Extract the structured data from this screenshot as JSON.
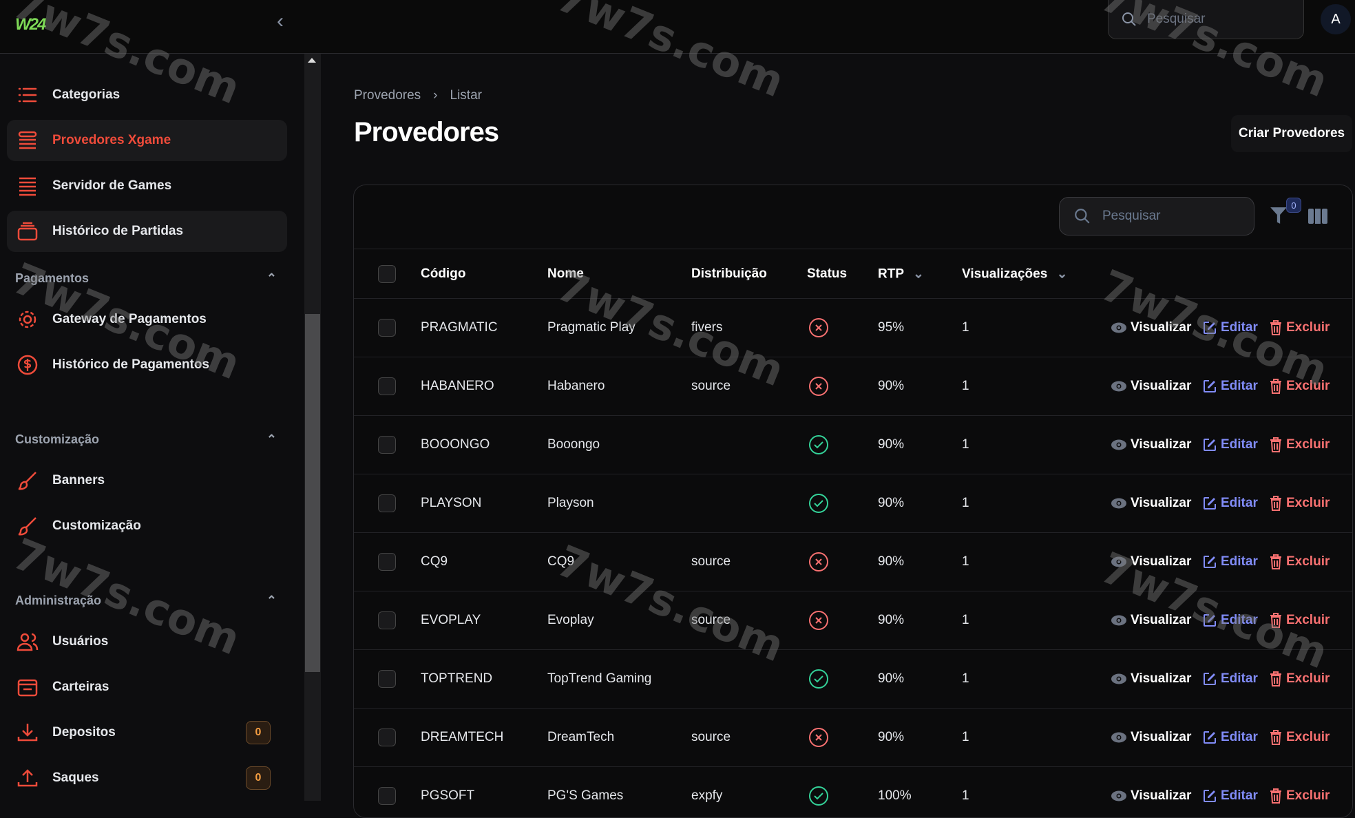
{
  "app": {
    "logo": "W24",
    "watermark": "7w7s.com"
  },
  "topbar": {
    "search_placeholder": "Pesquisar",
    "avatar": "A"
  },
  "sidebar": {
    "items_top": [
      {
        "label": "Categorias",
        "icon": "list-icon"
      },
      {
        "label": "Provedores Xgame",
        "icon": "stack-icon",
        "active": true
      },
      {
        "label": "Servidor de Games",
        "icon": "lines-icon"
      },
      {
        "label": "Histórico de Partidas",
        "icon": "archive-icon"
      }
    ],
    "sections": [
      {
        "title": "Pagamentos",
        "items": [
          {
            "label": "Gateway de Pagamentos",
            "icon": "gear-icon"
          },
          {
            "label": "Histórico de Pagamentos",
            "icon": "dollar-icon"
          }
        ]
      },
      {
        "title": "Customização",
        "items": [
          {
            "label": "Banners",
            "icon": "brush-icon"
          },
          {
            "label": "Customização",
            "icon": "brush-icon"
          }
        ]
      },
      {
        "title": "Administração",
        "items": [
          {
            "label": "Usuários",
            "icon": "users-icon"
          },
          {
            "label": "Carteiras",
            "icon": "wallet-icon"
          },
          {
            "label": "Depositos",
            "icon": "download-icon",
            "badge": "0"
          },
          {
            "label": "Saques",
            "icon": "upload-icon",
            "badge": "0"
          }
        ]
      }
    ]
  },
  "breadcrumb": [
    "Provedores",
    "Listar"
  ],
  "page_title": "Provedores",
  "create_button": "Criar Provedores",
  "table": {
    "search_placeholder": "Pesquisar",
    "filter_count": "0",
    "columns": [
      "Código",
      "Nome",
      "Distribuição",
      "Status",
      "RTP",
      "Visualizações"
    ],
    "actions": {
      "view": "Visualizar",
      "edit": "Editar",
      "delete": "Excluir"
    },
    "rows": [
      {
        "code": "PRAGMATIC",
        "name": "Pragmatic Play",
        "dist": "fivers",
        "status": "inactive",
        "rtp": "95%",
        "views": "1"
      },
      {
        "code": "HABANERO",
        "name": "Habanero",
        "dist": "source",
        "status": "inactive",
        "rtp": "90%",
        "views": "1"
      },
      {
        "code": "BOOONGO",
        "name": "Booongo",
        "dist": "",
        "status": "active",
        "rtp": "90%",
        "views": "1"
      },
      {
        "code": "PLAYSON",
        "name": "Playson",
        "dist": "",
        "status": "active",
        "rtp": "90%",
        "views": "1"
      },
      {
        "code": "CQ9",
        "name": "CQ9",
        "dist": "source",
        "status": "inactive",
        "rtp": "90%",
        "views": "1"
      },
      {
        "code": "EVOPLAY",
        "name": "Evoplay",
        "dist": "source",
        "status": "inactive",
        "rtp": "90%",
        "views": "1"
      },
      {
        "code": "TOPTREND",
        "name": "TopTrend Gaming",
        "dist": "",
        "status": "active",
        "rtp": "90%",
        "views": "1"
      },
      {
        "code": "DREAMTECH",
        "name": "DreamTech",
        "dist": "source",
        "status": "inactive",
        "rtp": "90%",
        "views": "1"
      },
      {
        "code": "PGSOFT",
        "name": "PG'S Games",
        "dist": "expfy",
        "status": "active",
        "rtp": "100%",
        "views": "1"
      }
    ]
  },
  "colors": {
    "accent": "#ef4b3a",
    "edit": "#818cf8",
    "delete": "#f87171",
    "active": "#34d399",
    "inactive": "#f87171",
    "badge": "#f59e42"
  }
}
